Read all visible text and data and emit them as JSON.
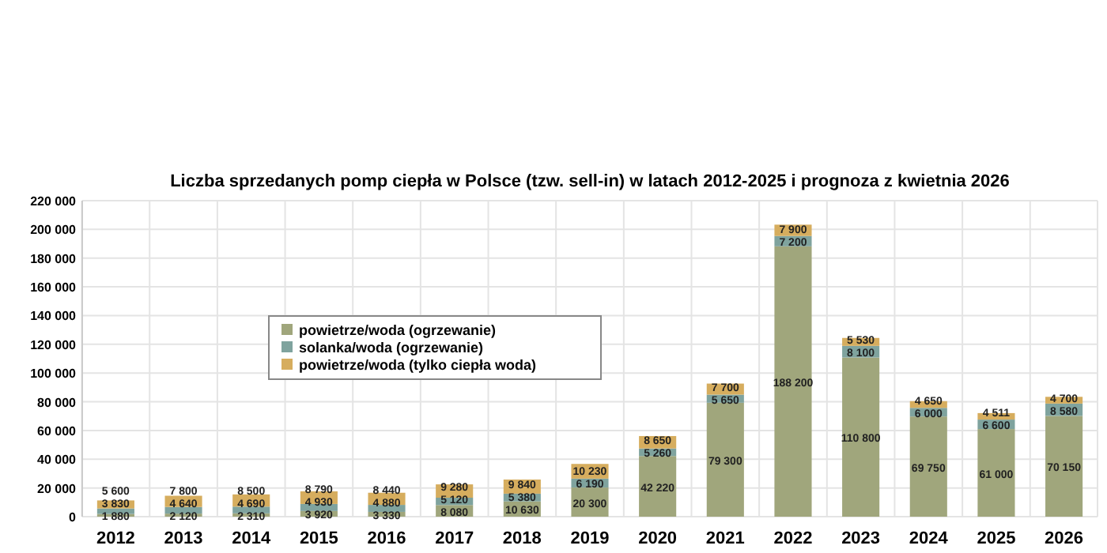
{
  "chart_data": {
    "type": "bar",
    "title": "Liczba sprzedanych pomp ciepła w Polsce (tzw. sell-in) w latach 2012-2025 i prognoza z kwietnia 2026",
    "categories": [
      "2012",
      "2013",
      "2014",
      "2015",
      "2016",
      "2017",
      "2018",
      "2019",
      "2020",
      "2021",
      "2022",
      "2023",
      "2024",
      "2025",
      "2026"
    ],
    "stacked": true,
    "series": [
      {
        "name": "powietrze/woda (ogrzewanie)",
        "color": "#a0a67c",
        "values": [
          1880,
          2120,
          2310,
          3920,
          3330,
          8080,
          10630,
          20300,
          42220,
          79300,
          188200,
          110800,
          69750,
          61000,
          70150
        ]
      },
      {
        "name": "solanka/woda (ogrzewanie)",
        "color": "#7fa39e",
        "values": [
          3830,
          4640,
          4690,
          4930,
          4880,
          5120,
          5380,
          6190,
          5260,
          5650,
          7200,
          8100,
          6000,
          6600,
          8580
        ]
      },
      {
        "name": "powietrze/woda (tylko ciepła woda)",
        "color": "#d6ad5e",
        "values": [
          5600,
          7800,
          8500,
          8790,
          8440,
          9280,
          9840,
          10230,
          8650,
          7700,
          7900,
          5530,
          4650,
          4511,
          4700
        ]
      }
    ],
    "ylim": [
      0,
      220000
    ],
    "yticks": [
      {
        "value": 0,
        "label": "0"
      },
      {
        "value": 20000,
        "label": "20 000"
      },
      {
        "value": 40000,
        "label": "40 000"
      },
      {
        "value": 60000,
        "label": "60 000"
      },
      {
        "value": 80000,
        "label": "80 000"
      },
      {
        "value": 100000,
        "label": "100 000"
      },
      {
        "value": 120000,
        "label": "120 000"
      },
      {
        "value": 140000,
        "label": "140 000"
      },
      {
        "value": 160000,
        "label": "160 000"
      },
      {
        "value": 180000,
        "label": "180 000"
      },
      {
        "value": 200000,
        "label": "200 000"
      },
      {
        "value": 220000,
        "label": "220 000"
      }
    ],
    "grid": true,
    "legend": "left",
    "data_labels": true
  }
}
